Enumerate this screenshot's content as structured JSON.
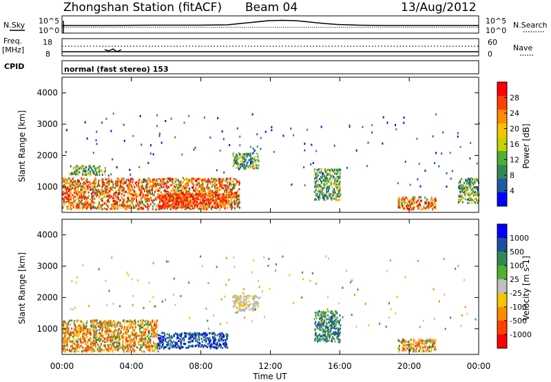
{
  "header": {
    "station": "Zhongshan Station (fitACF)",
    "beam": "Beam 04",
    "date": "13/Aug/2012"
  },
  "strip_labels": {
    "nsky": "N.Sky",
    "nsky_ticks": [
      "10^5",
      "10^0"
    ],
    "nsearch": "N.Search",
    "nsearch_ticks": [
      "10^5",
      "10^0"
    ],
    "freq": "Freq.",
    "freq_unit": "[MHz]",
    "freq_ticks": [
      "18",
      "8"
    ],
    "nave": "Nave",
    "nave_ticks": [
      "60",
      "0"
    ],
    "cpid": "CPID",
    "cpid_text": "normal (fast stereo) 153"
  },
  "chart_data": [
    {
      "type": "heatmap",
      "panel": "power",
      "ylabel": "Slant Range [km]",
      "xlabel": "Time UT",
      "xlim": [
        0,
        24
      ],
      "ylim": [
        180,
        4500
      ],
      "y_ticks": [
        "1000",
        "2000",
        "3000",
        "4000"
      ],
      "x_ticks": [
        "00:00",
        "04:00",
        "08:00",
        "12:00",
        "16:00",
        "20:00",
        "00:00"
      ],
      "colorbar": {
        "label": "Power [dB]",
        "ticks": [
          "28",
          "24",
          "20",
          "16",
          "12",
          "8",
          "4"
        ],
        "colors": [
          "#ff0000",
          "#ff4000",
          "#ff8c00",
          "#f5c400",
          "#c8d200",
          "#50b030",
          "#2e8b57",
          "#1e5aa0",
          "#0000ff"
        ]
      },
      "regions": [
        {
          "t0": 0.0,
          "t1": 10.2,
          "r0": 300,
          "r1": 1300,
          "level": "high"
        },
        {
          "t0": 5.5,
          "t1": 9.5,
          "r0": 380,
          "r1": 800,
          "level": "max"
        },
        {
          "t0": 9.8,
          "t1": 11.3,
          "r0": 1600,
          "r1": 2100,
          "level": "mid"
        },
        {
          "t0": 0.4,
          "t1": 2.5,
          "r0": 1400,
          "r1": 1700,
          "level": "mid"
        },
        {
          "t0": 14.5,
          "t1": 16.0,
          "r0": 600,
          "r1": 1600,
          "level": "mid"
        },
        {
          "t0": 19.3,
          "t1": 21.5,
          "r0": 300,
          "r1": 700,
          "level": "high"
        },
        {
          "t0": 22.8,
          "t1": 24.0,
          "r0": 500,
          "r1": 1300,
          "level": "mid"
        }
      ]
    },
    {
      "type": "heatmap",
      "panel": "velocity",
      "ylabel": "Slant Range [km]",
      "xlabel": "Time UT",
      "xlim": [
        0,
        24
      ],
      "ylim": [
        180,
        4500
      ],
      "y_ticks": [
        "1000",
        "2000",
        "3000",
        "4000"
      ],
      "x_ticks": [
        "00:00",
        "04:00",
        "08:00",
        "12:00",
        "16:00",
        "20:00",
        "00:00"
      ],
      "colorbar": {
        "label": "Velocity [m s-1]",
        "ticks": [
          "1000",
          "500",
          "100",
          "25",
          "-25",
          "-100",
          "-500",
          "-1000"
        ],
        "colors": [
          "#0000ff",
          "#1e50a0",
          "#2e8b57",
          "#50b030",
          "#c0c0c0",
          "#f5c400",
          "#ff8c00",
          "#ff4000",
          "#ff0000"
        ]
      },
      "regions": [
        {
          "t0": 0.0,
          "t1": 5.5,
          "r0": 300,
          "r1": 1300,
          "level": "negative"
        },
        {
          "t0": 5.5,
          "t1": 9.5,
          "r0": 400,
          "r1": 900,
          "level": "strong-positive"
        },
        {
          "t0": 9.8,
          "t1": 11.3,
          "r0": 1600,
          "r1": 2100,
          "level": "zero"
        },
        {
          "t0": 14.5,
          "t1": 16.0,
          "r0": 600,
          "r1": 1600,
          "level": "positive"
        },
        {
          "t0": 19.3,
          "t1": 21.5,
          "r0": 300,
          "r1": 700,
          "level": "negative"
        }
      ]
    }
  ]
}
